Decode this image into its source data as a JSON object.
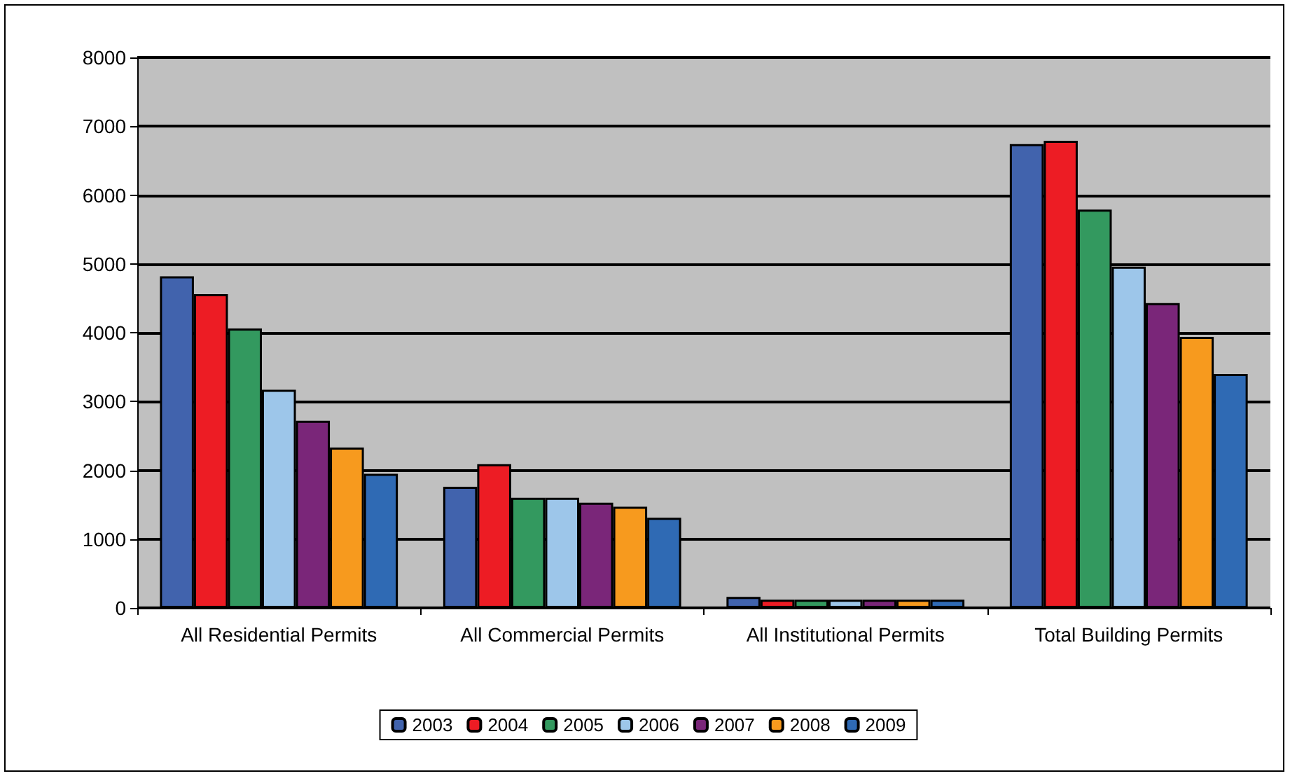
{
  "chart_data": {
    "type": "bar",
    "categories": [
      "All Residential Permits",
      "All Commercial Permits",
      "All Institutional Permits",
      "Total Building Permits"
    ],
    "series": [
      {
        "name": "2003",
        "color": "#4163ad",
        "values": [
          4820,
          1760,
          160,
          6740
        ]
      },
      {
        "name": "2004",
        "color": "#ed1c24",
        "values": [
          4560,
          2090,
          120,
          6790
        ]
      },
      {
        "name": "2005",
        "color": "#33995f",
        "values": [
          4060,
          1600,
          120,
          5790
        ]
      },
      {
        "name": "2006",
        "color": "#9dc6ea",
        "values": [
          3170,
          1600,
          120,
          4960
        ]
      },
      {
        "name": "2007",
        "color": "#7a2679",
        "values": [
          2720,
          1530,
          120,
          4430
        ]
      },
      {
        "name": "2008",
        "color": "#f79a1e",
        "values": [
          2330,
          1470,
          120,
          3940
        ]
      },
      {
        "name": "2009",
        "color": "#2f6ab4",
        "values": [
          1950,
          1310,
          120,
          3400
        ]
      }
    ],
    "ylim": [
      0,
      8000
    ],
    "yticks": [
      0,
      1000,
      2000,
      3000,
      4000,
      5000,
      6000,
      7000,
      8000
    ],
    "grid": "y",
    "legend": "bottom"
  }
}
